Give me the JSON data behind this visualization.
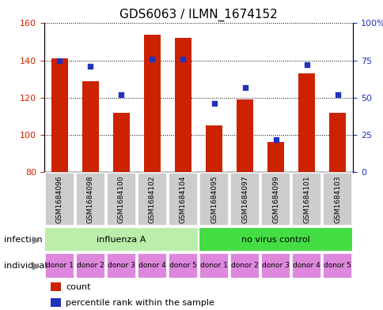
{
  "title": "GDS6063 / ILMN_1674152",
  "samples": [
    "GSM1684096",
    "GSM1684098",
    "GSM1684100",
    "GSM1684102",
    "GSM1684104",
    "GSM1684095",
    "GSM1684097",
    "GSM1684099",
    "GSM1684101",
    "GSM1684103"
  ],
  "counts": [
    141,
    129,
    112,
    154,
    152,
    105,
    119,
    96,
    133,
    112
  ],
  "percentiles": [
    75,
    71,
    52,
    76,
    76,
    46,
    57,
    22,
    72,
    52
  ],
  "ylim_left": [
    80,
    160
  ],
  "ylim_right": [
    0,
    100
  ],
  "yticks_left": [
    80,
    100,
    120,
    140,
    160
  ],
  "yticks_right": [
    0,
    25,
    50,
    75,
    100
  ],
  "ytick_labels_right": [
    "0",
    "25",
    "50",
    "75",
    "100%"
  ],
  "bar_color": "#cc2200",
  "dot_color": "#2233bb",
  "infection_groups": [
    {
      "label": "influenza A",
      "start": 0,
      "end": 5,
      "color": "#bbeeaa"
    },
    {
      "label": "no virus control",
      "start": 5,
      "end": 10,
      "color": "#44dd44"
    }
  ],
  "individual_labels": [
    "donor 1",
    "donor 2",
    "donor 3",
    "donor 4",
    "donor 5",
    "donor 1",
    "donor 2",
    "donor 3",
    "donor 4",
    "donor 5"
  ],
  "individual_color": "#dd88dd",
  "sample_bg_color": "#cccccc",
  "legend_count_label": "count",
  "legend_percentile_label": "percentile rank within the sample",
  "infection_label": "infection",
  "individual_label": "individual",
  "background_color": "#ffffff",
  "title_fontsize": 11,
  "tick_fontsize": 8,
  "sample_fontsize": 6.5,
  "label_fontsize": 8,
  "donor_fontsize": 6.5
}
